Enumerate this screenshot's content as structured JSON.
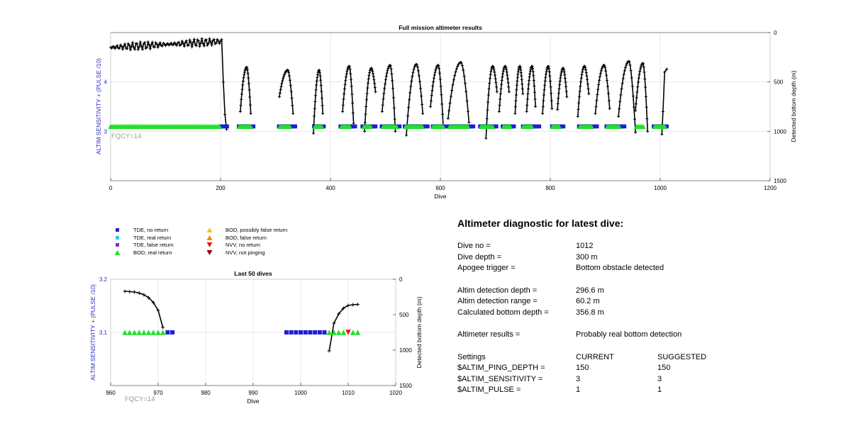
{
  "colors": {
    "tde_no_return": "#1f1fd6",
    "tde_real_return": "#33cccc",
    "tde_false_return": "#7b2fd1",
    "bod_real_return": "#22e02a",
    "bod_possibly_false": "#f5c518",
    "bod_false_return": "#f08a13",
    "nvv_no_return": "#e21a1a",
    "nvv_not_pinging": "#8b0000",
    "left_axis": "#2b2bb8",
    "fqcy": "#999999"
  },
  "legend": [
    {
      "label": "TDE, no return",
      "shape": "square",
      "color_key": "tde_no_return"
    },
    {
      "label": "TDE, real return",
      "shape": "square",
      "color_key": "tde_real_return"
    },
    {
      "label": "TDE, false return",
      "shape": "square",
      "color_key": "tde_false_return"
    },
    {
      "label": "BOD, real return",
      "shape": "triangle-up",
      "color_key": "bod_real_return"
    },
    {
      "label": "BOD, possibly false return",
      "shape": "triangle-up",
      "color_key": "bod_possibly_false"
    },
    {
      "label": "BOD, false return",
      "shape": "triangle-up",
      "color_key": "bod_false_return"
    },
    {
      "label": "NVV, no return",
      "shape": "triangle-down",
      "color_key": "nvv_no_return"
    },
    {
      "label": "NVV, not pinging",
      "shape": "triangle-down",
      "color_key": "nvv_not_pinging"
    }
  ],
  "diagnostic": {
    "title": "Altimeter diagnostic for latest dive:",
    "dive_no_label": "Dive no =",
    "dive_no": "1012",
    "dive_depth_label": "Dive depth =",
    "dive_depth": "300 m",
    "apogee_label": "Apogee trigger =",
    "apogee": "Bottom obstacle detected",
    "altim_depth_label": "Altim detection depth =",
    "altim_depth": "296.6 m",
    "altim_range_label": "Altim detection range =",
    "altim_range": "60.2 m",
    "calc_depth_label": "Calculated bottom depth =",
    "calc_depth": "356.8 m",
    "results_label": "Altimeter results =",
    "results": "Probably real bottom detection",
    "settings_label": "Settings",
    "current_label": "CURRENT",
    "suggested_label": "SUGGESTED",
    "settings": [
      {
        "name": "$ALTIM_PING_DEPTH =",
        "current": "150",
        "suggested": "150"
      },
      {
        "name": "$ALTIM_SENSITIVITY =",
        "current": "3",
        "suggested": "3"
      },
      {
        "name": "$ALTIM_PULSE =",
        "current": "1",
        "suggested": "1"
      }
    ]
  },
  "chart_data": [
    {
      "type": "scatter",
      "title": "Full mission altimeter results",
      "xlabel": "Dive",
      "ylabel": "ALTIM SENSITIVITY + (PULSE /10)",
      "y2label": "Detected bottom depth (m)",
      "annotation": "FQCY=14",
      "xlim": [
        0,
        1200
      ],
      "ylim": [
        2,
        5
      ],
      "y2lim": [
        1500,
        0
      ],
      "xticks": [
        "0",
        "200",
        "400",
        "600",
        "800",
        "1000",
        "1200"
      ],
      "yticks": [
        "3",
        "4"
      ],
      "y2ticks": [
        "0",
        "500",
        "1000",
        "1500"
      ],
      "grid": true,
      "series": [
        {
          "kind": "markers",
          "color_key": "tde_no_return",
          "y": 3.1,
          "segments": [
            [
              200,
              213
            ],
            [
              233,
              261
            ],
            [
              306,
              336
            ],
            [
              370,
              388
            ],
            [
              418,
              447
            ],
            [
              458,
              484
            ],
            [
              493,
              528
            ],
            [
              535,
              578
            ],
            [
              586,
              610
            ],
            [
              615,
              660
            ],
            [
              672,
              702
            ],
            [
              713,
              735
            ],
            [
              750,
              780
            ],
            [
              803,
              826
            ],
            [
              852,
              885
            ],
            [
              902,
              935
            ],
            [
              988,
              1012
            ]
          ]
        },
        {
          "kind": "markers",
          "color_key": "bod_real_return",
          "y": 3.1,
          "segments": [
            [
              0,
              200
            ],
            [
              234,
              256
            ],
            [
              308,
              328
            ],
            [
              372,
              384
            ],
            [
              420,
              437
            ],
            [
              461,
              475
            ],
            [
              496,
              520
            ],
            [
              537,
              568
            ],
            [
              587,
              605
            ],
            [
              617,
              652
            ],
            [
              674,
              696
            ],
            [
              715,
              727
            ],
            [
              751,
              767
            ],
            [
              804,
              818
            ],
            [
              854,
              875
            ],
            [
              904,
              925
            ],
            [
              957,
              970
            ],
            [
              990,
              1010
            ]
          ]
        },
        {
          "kind": "bottom-depth",
          "color_key": "black",
          "ranges": [
            {
              "x": [
                0,
                200
              ],
              "flat": [
                150,
                90
              ]
            },
            {
              "x": [
                202,
                211
              ],
              "points": [
                [
                  202,
                  70
                ],
                [
                  205,
                  500
                ],
                [
                  208,
                  830
                ],
                [
                  211,
                  980
                ]
              ]
            },
            {
              "x": [
                236,
                255
              ],
              "start": 800,
              "peak": 350,
              "end": 820
            },
            {
              "x": [
                307,
                332
              ],
              "start": 650,
              "peak": 380,
              "end": 820
            },
            {
              "x": [
                369,
                386
              ],
              "start": 1020,
              "peak": 380,
              "end": 820
            },
            {
              "x": [
                422,
                442
              ],
              "start": 800,
              "peak": 340,
              "end": 920
            },
            {
              "x": [
                462,
                482
              ],
              "start": 1000,
              "peak": 360,
              "end": 600
            },
            {
              "x": [
                494,
                518
              ],
              "start": 800,
              "peak": 330,
              "end": 1000
            },
            {
              "x": [
                538,
                568
              ],
              "start": 1040,
              "peak": 320,
              "end": 820
            },
            {
              "x": [
                582,
                605
              ],
              "start": 750,
              "peak": 330,
              "end": 940
            },
            {
              "x": [
                614,
                652
              ],
              "start": 870,
              "peak": 300,
              "end": 910
            },
            {
              "x": [
                683,
                703
              ],
              "start": 1070,
              "peak": 340,
              "end": 600
            },
            {
              "x": [
                707,
                725
              ],
              "start": 800,
              "peak": 340,
              "end": 600
            },
            {
              "x": [
                736,
                750
              ],
              "start": 820,
              "peak": 340,
              "end": 620
            },
            {
              "x": [
                757,
                773
              ],
              "start": 800,
              "peak": 340,
              "end": 750
            },
            {
              "x": [
                786,
                803
              ],
              "start": 820,
              "peak": 340,
              "end": 770
            },
            {
              "x": [
                813,
                830
              ],
              "start": 780,
              "peak": 360,
              "end": 650
            },
            {
              "x": [
                850,
                870
              ],
              "start": 850,
              "peak": 340,
              "end": 620
            },
            {
              "x": [
                882,
                908
              ],
              "start": 820,
              "peak": 330,
              "end": 770
            },
            {
              "x": [
                924,
                955
              ],
              "start": 850,
              "peak": 290,
              "end": 1010
            },
            {
              "x": [
                955,
                977
              ],
              "start": 790,
              "peak": 310,
              "end": 1000
            },
            {
              "x": [
                1003,
                1012
              ],
              "points": [
                [
                  1003,
                  1030
                ],
                [
                  1005,
                  800
                ],
                [
                  1008,
                  400
                ],
                [
                  1012,
                  370
                ]
              ]
            }
          ]
        }
      ]
    },
    {
      "type": "scatter",
      "title": "Last 50 dives",
      "xlabel": "Dive",
      "ylabel": "ALTIM SENSITIVITY + (PULSE /10)",
      "y2label": "Detected bottom depth (m)",
      "annotation": "FQCY=14",
      "xlim": [
        960,
        1020
      ],
      "ylim": [
        3,
        3.2
      ],
      "y2lim": [
        1500,
        0
      ],
      "xticks": [
        "960",
        "970",
        "980",
        "990",
        "1000",
        "1010",
        "1020"
      ],
      "yticks": [
        "3.1",
        "3.2"
      ],
      "y2ticks": [
        "0",
        "500",
        "1000",
        "1500"
      ],
      "grid": true,
      "series": [
        {
          "kind": "markers",
          "color_key": "bod_real_return",
          "points": [
            [
              963,
              3.1
            ],
            [
              964,
              3.1
            ],
            [
              965,
              3.1
            ],
            [
              966,
              3.1
            ],
            [
              967,
              3.1
            ],
            [
              968,
              3.1
            ],
            [
              969,
              3.1
            ],
            [
              970,
              3.1
            ],
            [
              971,
              3.1
            ],
            [
              1006,
              3.1
            ],
            [
              1007,
              3.1
            ],
            [
              1008,
              3.1
            ],
            [
              1009,
              3.1
            ],
            [
              1011,
              3.1
            ],
            [
              1012,
              3.1
            ]
          ]
        },
        {
          "kind": "markers",
          "color_key": "tde_no_return",
          "points": [
            [
              972,
              3.1
            ],
            [
              973,
              3.1
            ],
            [
              997,
              3.1
            ],
            [
              998,
              3.1
            ],
            [
              999,
              3.1
            ],
            [
              1000,
              3.1
            ],
            [
              1001,
              3.1
            ],
            [
              1002,
              3.1
            ],
            [
              1003,
              3.1
            ],
            [
              1004,
              3.1
            ],
            [
              1005,
              3.1
            ],
            [
              1010,
              3.1
            ]
          ]
        },
        {
          "kind": "markers",
          "color_key": "nvv_no_return",
          "shape": "triangle-down",
          "points": [
            [
              1010,
              3.1
            ]
          ]
        },
        {
          "kind": "bottom-depth",
          "color_key": "black",
          "points_a": [
            [
              963,
              170
            ],
            [
              964,
              175
            ],
            [
              965,
              180
            ],
            [
              966,
              195
            ],
            [
              967,
              220
            ],
            [
              968,
              260
            ],
            [
              969,
              330
            ],
            [
              970,
              440
            ],
            [
              971,
              680
            ]
          ],
          "points_b": [
            [
              1006,
              1010
            ],
            [
              1007,
              620
            ],
            [
              1008,
              490
            ],
            [
              1009,
              410
            ],
            [
              1010,
              370
            ],
            [
              1011,
              360
            ],
            [
              1012,
              355
            ]
          ]
        }
      ]
    }
  ]
}
